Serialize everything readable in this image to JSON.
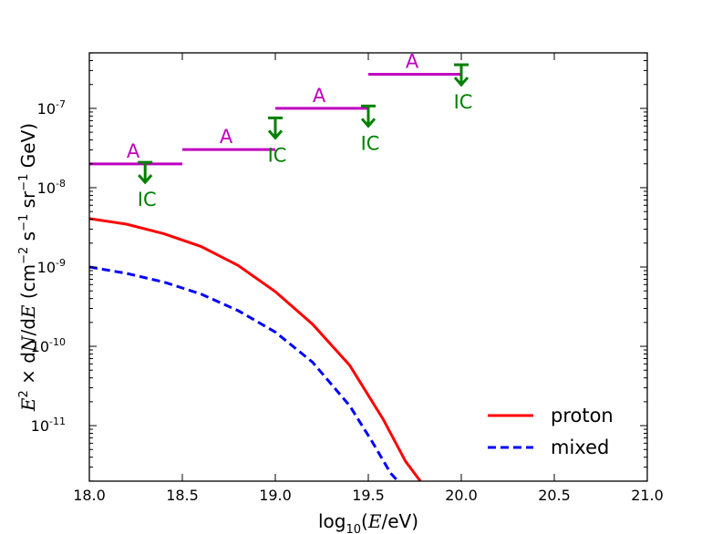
{
  "chart_data": {
    "type": "line",
    "xlabel": "log10(E/eV)",
    "ylabel": "E^2 × dN/dE (cm^-2 s^-1 sr^-1 GeV)",
    "xlim": [
      18.0,
      21.0
    ],
    "ylim_log10": [
      -11.7,
      -6.3
    ],
    "yscale": "log",
    "grid": false,
    "legend_position": "bottom-right",
    "x_ticks": [
      "18.0",
      "18.5",
      "19.0",
      "19.5",
      "20.0",
      "20.5",
      "21.0"
    ],
    "y_ticks": [
      {
        "base": "10",
        "exp": "-11"
      },
      {
        "base": "10",
        "exp": "-10"
      },
      {
        "base": "10",
        "exp": "-9"
      },
      {
        "base": "10",
        "exp": "-8"
      },
      {
        "base": "10",
        "exp": "-7"
      }
    ],
    "series": [
      {
        "name": "proton",
        "color": "#ff0000",
        "style": "solid",
        "x": [
          18.0,
          18.2,
          18.4,
          18.6,
          18.8,
          19.0,
          19.2,
          19.4,
          19.58,
          19.7,
          19.78
        ],
        "log10_y": [
          -8.39,
          -8.46,
          -8.58,
          -8.74,
          -8.98,
          -9.31,
          -9.72,
          -10.24,
          -10.92,
          -11.45,
          -11.7
        ]
      },
      {
        "name": "mixed",
        "color": "#0000ff",
        "style": "dashed",
        "x": [
          18.0,
          18.2,
          18.4,
          18.6,
          18.8,
          19.0,
          19.2,
          19.4,
          19.52,
          19.62,
          19.66
        ],
        "log10_y": [
          -9.0,
          -9.08,
          -9.19,
          -9.34,
          -9.55,
          -9.82,
          -10.2,
          -10.75,
          -11.2,
          -11.6,
          -11.7
        ]
      }
    ],
    "auger_limits": {
      "label": "A",
      "color": "#bf00bf",
      "bins": [
        {
          "x_from": 18.0,
          "x_to": 18.5,
          "log10_y": -7.7
        },
        {
          "x_from": 18.5,
          "x_to": 19.0,
          "log10_y": -7.52
        },
        {
          "x_from": 19.0,
          "x_to": 19.5,
          "log10_y": -7.0
        },
        {
          "x_from": 19.5,
          "x_to": 20.0,
          "log10_y": -6.57
        }
      ]
    },
    "icecube_limits": {
      "label": "IC",
      "color": "#008000",
      "points": [
        {
          "x": 18.3,
          "log10_y": -7.68
        },
        {
          "x": 19.0,
          "log10_y": -7.12
        },
        {
          "x": 19.5,
          "log10_y": -6.97
        },
        {
          "x": 20.0,
          "log10_y": -6.45
        }
      ]
    }
  }
}
